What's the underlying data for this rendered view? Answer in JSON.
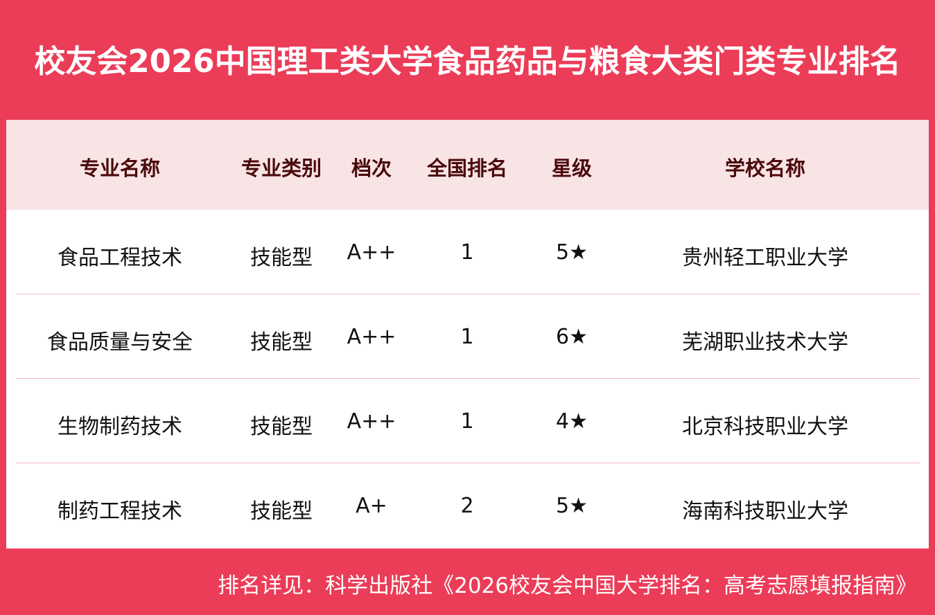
{
  "title": "校友会2026中国理工类大学食品药品与粮食大类门类专业排名",
  "table": {
    "headers": [
      "专业名称",
      "专业类别",
      "档次",
      "全国排名",
      "星级",
      "学校名称"
    ],
    "rows": [
      [
        "食品工程技术",
        "技能型",
        "A++",
        "1",
        "5★",
        "贵州轻工职业大学"
      ],
      [
        "食品质量与安全",
        "技能型",
        "A++",
        "1",
        "6★",
        "芜湖职业技术大学"
      ],
      [
        "生物制药技术",
        "技能型",
        "A++",
        "1",
        "4★",
        "北京科技职业大学"
      ],
      [
        "制药工程技术",
        "技能型",
        "A+",
        "2",
        "5★",
        "海南科技职业大学"
      ]
    ]
  },
  "footer": "排名详见：科学出版社《2026校友会中国大学排名：高考志愿填报指南》",
  "colors": {
    "background": "#EB3C58",
    "header_bg": "#F8E3E5",
    "header_text": "#4A0A0A"
  }
}
